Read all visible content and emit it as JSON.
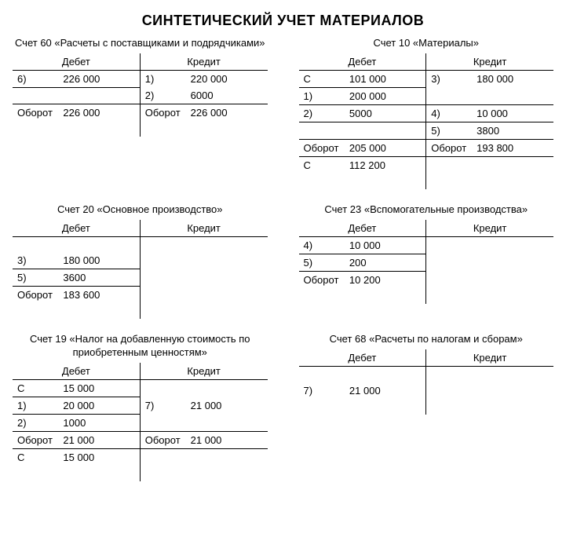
{
  "title": "СИНТЕТИЧЕСКИЙ УЧЕТ МАТЕРИАЛОВ",
  "labels": {
    "debit": "Дебет",
    "credit": "Кредит"
  },
  "accounts": {
    "a60": {
      "title": "Счет 60 «Расчеты с поставщиками и подрядчиками»",
      "rows": [
        {
          "dl": "6)",
          "dv": "226 000",
          "cl": "1)",
          "cv": "220 000"
        },
        {
          "dl": "",
          "dv": "",
          "cl": "2)",
          "cv": "6000",
          "topD": true
        },
        {
          "dl": "Оборот",
          "dv": "226 000",
          "cl": "Оборот",
          "cv": "226 000",
          "topD": true,
          "topC": true
        }
      ]
    },
    "a10": {
      "title": "Счет 10 «Материалы»",
      "rows": [
        {
          "dl": "С",
          "dv": "101 000",
          "cl": "3)",
          "cv": "180 000"
        },
        {
          "dl": "1)",
          "dv": "200 000",
          "cl": "",
          "cv": "",
          "topD": true
        },
        {
          "dl": "2)",
          "dv": "5000",
          "cl": "4)",
          "cv": "10 000",
          "topD": true,
          "topC": true
        },
        {
          "dl": "",
          "dv": "",
          "cl": "5)",
          "cv": "3800",
          "topD": true,
          "topC": true
        },
        {
          "dl": "Оборот",
          "dv": "205 000",
          "cl": "Оборот",
          "cv": "193 800",
          "topD": true,
          "topC": true
        },
        {
          "dl": "С",
          "dv": "112 200",
          "cl": "",
          "cv": "",
          "topD": true,
          "topC": true
        }
      ]
    },
    "a20": {
      "title": "Счет 20 «Основное производство»",
      "rows": [
        {
          "dl": "",
          "dv": "",
          "cl": "",
          "cv": "",
          "empty": true
        },
        {
          "dl": "3)",
          "dv": "180 000",
          "cl": "",
          "cv": ""
        },
        {
          "dl": "5)",
          "dv": "3600",
          "cl": "",
          "cv": "",
          "topD": true
        },
        {
          "dl": "Оборот",
          "dv": "183 600",
          "cl": "",
          "cv": "",
          "topD": true
        }
      ]
    },
    "a23": {
      "title": "Счет 23 «Вспомогательные производства»",
      "rows": [
        {
          "dl": "4)",
          "dv": "10 000",
          "cl": "",
          "cv": ""
        },
        {
          "dl": "5)",
          "dv": "200",
          "cl": "",
          "cv": "",
          "topD": true
        },
        {
          "dl": "Оборот",
          "dv": "10 200",
          "cl": "",
          "cv": "",
          "topD": true
        }
      ]
    },
    "a19": {
      "title": "Счет 19 «Налог на добавленную стоимость по приобретенным ценностям»",
      "rows": [
        {
          "dl": "С",
          "dv": "15 000",
          "cl": "",
          "cv": ""
        },
        {
          "dl": "1)",
          "dv": "20 000",
          "cl": "7)",
          "cv": "21 000",
          "topD": true
        },
        {
          "dl": "2)",
          "dv": "1000",
          "cl": "",
          "cv": "",
          "topD": true
        },
        {
          "dl": "Оборот",
          "dv": "21 000",
          "cl": "Оборот",
          "cv": "21 000",
          "topD": true,
          "topC": true
        },
        {
          "dl": "С",
          "dv": "15 000",
          "cl": "",
          "cv": "",
          "topD": true,
          "topC": true
        }
      ]
    },
    "a68": {
      "title": "Счет 68 «Расчеты по налогам и сборам»",
      "rows": [
        {
          "dl": "",
          "dv": "",
          "cl": "",
          "cv": "",
          "empty": true
        },
        {
          "dl": "7)",
          "dv": "21 000",
          "cl": "",
          "cv": ""
        }
      ]
    }
  },
  "layout": [
    [
      "a60",
      "a10"
    ],
    [
      "a20",
      "a23"
    ],
    [
      "a19",
      "a68"
    ]
  ],
  "style": {
    "fontFamily": "Arial, sans-serif",
    "fontSize": 13,
    "titleFontSize": 18,
    "borderColor": "#000",
    "background": "#fff"
  }
}
